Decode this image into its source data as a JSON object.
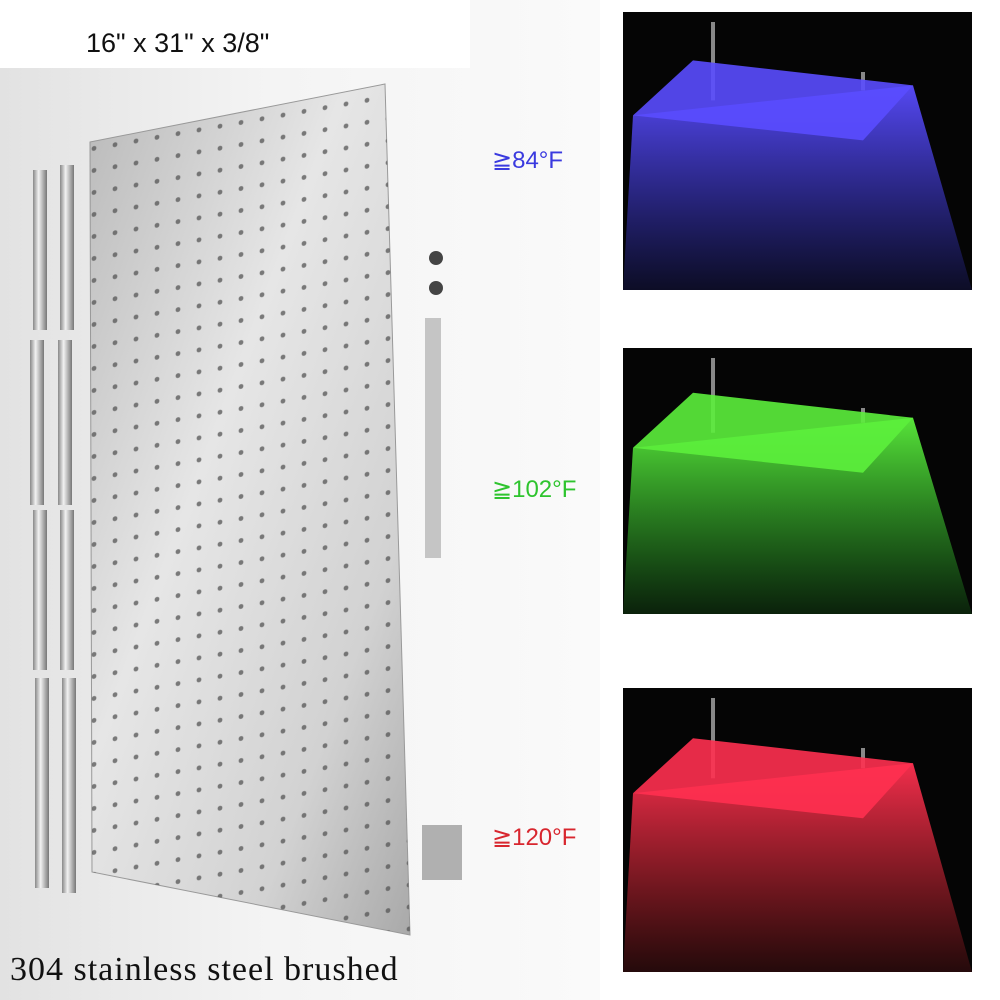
{
  "header": {
    "dimensions": "16\" x 31\" x 3/8\""
  },
  "caption": "304 stainless steel brushed",
  "panels": [
    {
      "label": "≧84°F",
      "color": "#3a3adf",
      "glow": "#5a4cff"
    },
    {
      "label": "≧102°F",
      "color": "#2ec42e",
      "glow": "#5cf03c"
    },
    {
      "label": "≧120°F",
      "color": "#d8262e",
      "glow": "#ff3050"
    }
  ]
}
